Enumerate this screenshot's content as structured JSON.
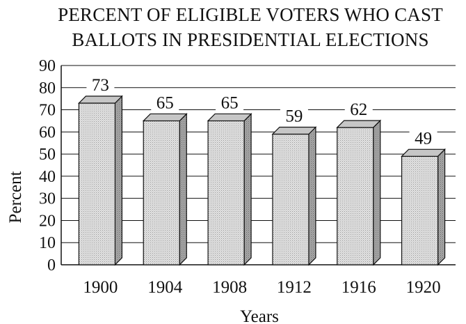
{
  "chart_data": {
    "type": "bar",
    "title": [
      "PERCENT OF ELIGIBLE VOTERS WHO CAST",
      "BALLOTS IN PRESIDENTIAL ELECTIONS"
    ],
    "xlabel": "Years",
    "ylabel": "Percent",
    "categories": [
      "1900",
      "1904",
      "1908",
      "1912",
      "1916",
      "1920"
    ],
    "values": [
      73,
      65,
      65,
      59,
      62,
      49
    ],
    "ylim": [
      0,
      90
    ],
    "yticks": [
      0,
      10,
      20,
      30,
      40,
      50,
      60,
      70,
      80,
      90
    ],
    "grid": true,
    "bar_color": "#d2d2d2"
  }
}
